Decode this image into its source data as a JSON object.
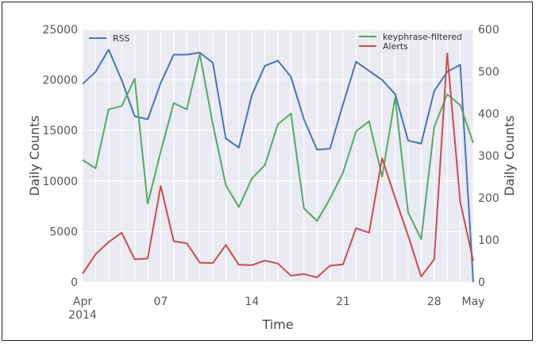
{
  "chart_data": {
    "type": "line",
    "xlabel": "Time",
    "ylabel_left": "Daily Counts",
    "ylabel_right": "Daily Counts",
    "x": [
      "2014-04-01",
      "2014-04-02",
      "2014-04-03",
      "2014-04-04",
      "2014-04-05",
      "2014-04-06",
      "2014-04-07",
      "2014-04-08",
      "2014-04-09",
      "2014-04-10",
      "2014-04-11",
      "2014-04-12",
      "2014-04-13",
      "2014-04-14",
      "2014-04-15",
      "2014-04-16",
      "2014-04-17",
      "2014-04-18",
      "2014-04-19",
      "2014-04-20",
      "2014-04-21",
      "2014-04-22",
      "2014-04-23",
      "2014-04-24",
      "2014-04-25",
      "2014-04-26",
      "2014-04-27",
      "2014-04-28",
      "2014-04-29",
      "2014-04-30",
      "2014-05-01"
    ],
    "xlim": [
      "2014-04-01",
      "2014-05-01"
    ],
    "x_ticks": [
      {
        "date": "2014-04-01",
        "label": "Apr",
        "sublabel": "2014"
      },
      {
        "date": "2014-04-07",
        "label": "07",
        "sublabel": ""
      },
      {
        "date": "2014-04-14",
        "label": "14",
        "sublabel": ""
      },
      {
        "date": "2014-04-21",
        "label": "21",
        "sublabel": ""
      },
      {
        "date": "2014-04-28",
        "label": "28",
        "sublabel": ""
      },
      {
        "date": "2014-05-01",
        "label": "May",
        "sublabel": ""
      }
    ],
    "ylim_left": [
      0,
      25000
    ],
    "yticks_left": [
      "0",
      "5000",
      "10000",
      "15000",
      "20000",
      "25000"
    ],
    "ylim_right": [
      0,
      600
    ],
    "yticks_right": [
      "0",
      "100",
      "200",
      "300",
      "400",
      "500",
      "600"
    ],
    "grid": true,
    "legends": [
      {
        "placement": "top-left",
        "entries": [
          "RSS"
        ]
      },
      {
        "placement": "top-right",
        "entries": [
          "keyphrase-filtered",
          "Alerts"
        ]
      }
    ],
    "series": [
      {
        "name": "RSS",
        "axis": "left",
        "color": "#4c72b0",
        "values": [
          19600,
          20800,
          23000,
          20000,
          16400,
          16100,
          19700,
          22500,
          22500,
          22700,
          21700,
          14200,
          13300,
          18500,
          21400,
          21900,
          20300,
          16100,
          13100,
          13200,
          17600,
          21800,
          20900,
          20000,
          18600,
          14000,
          13700,
          18900,
          20800,
          21500,
          0
        ]
      },
      {
        "name": "keyphrase-filtered",
        "axis": "right",
        "color": "#55a868",
        "values": [
          290,
          270,
          410,
          418,
          483,
          186,
          310,
          425,
          410,
          542,
          375,
          230,
          178,
          246,
          278,
          375,
          400,
          175,
          145,
          198,
          260,
          358,
          382,
          250,
          438,
          165,
          102,
          368,
          446,
          420,
          330
        ]
      },
      {
        "name": "Alerts",
        "axis": "right",
        "color": "#c44e52",
        "values": [
          20,
          66,
          95,
          117,
          54,
          56,
          228,
          97,
          92,
          46,
          45,
          88,
          41,
          40,
          51,
          44,
          15,
          19,
          11,
          39,
          42,
          128,
          117,
          294,
          200,
          110,
          13,
          54,
          543,
          190,
          50
        ]
      }
    ]
  }
}
